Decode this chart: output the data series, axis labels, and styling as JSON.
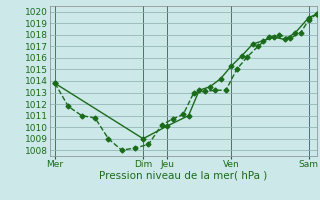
{
  "xlabel": "Pression niveau de la mer( hPa )",
  "bg_color": "#cce8e8",
  "line_color": "#1a6b1a",
  "grid_color": "#99bbbb",
  "vline_color": "#336633",
  "xlim": [
    0,
    100
  ],
  "ylim": [
    1007.5,
    1020.5
  ],
  "yticks": [
    1008,
    1009,
    1010,
    1011,
    1012,
    1013,
    1014,
    1015,
    1016,
    1017,
    1018,
    1019,
    1020
  ],
  "xtick_positions": [
    2,
    35,
    44,
    68,
    97
  ],
  "xtick_labels": [
    "Mer",
    "Dim",
    "Jeu",
    "Ven",
    "Sam"
  ],
  "vline_positions": [
    2,
    35,
    44,
    68,
    97
  ],
  "line1_x": [
    2,
    7,
    12,
    17,
    22,
    27,
    32,
    37,
    42,
    46,
    50,
    54,
    58,
    62,
    66,
    70,
    74,
    78,
    82,
    86,
    90,
    94,
    97,
    100
  ],
  "line1_y": [
    1013.8,
    1011.8,
    1011.0,
    1010.8,
    1009.0,
    1008.0,
    1008.2,
    1008.5,
    1010.2,
    1010.7,
    1011.1,
    1013.0,
    1013.1,
    1013.2,
    1013.2,
    1015.0,
    1016.1,
    1017.0,
    1017.8,
    1018.0,
    1017.7,
    1018.2,
    1019.3,
    1019.8
  ],
  "line2_x": [
    2,
    35,
    44,
    52,
    56,
    60,
    64,
    68,
    72,
    76,
    80,
    84,
    88,
    92,
    97,
    100
  ],
  "line2_y": [
    1013.8,
    1009.0,
    1010.1,
    1011.0,
    1013.2,
    1013.5,
    1014.2,
    1015.3,
    1016.2,
    1017.2,
    1017.5,
    1017.8,
    1017.6,
    1018.2,
    1019.5,
    1019.8
  ],
  "marker": "D",
  "markersize": 2.5,
  "linewidth": 1.0,
  "xlabel_fontsize": 7.5,
  "tick_fontsize": 6.5
}
